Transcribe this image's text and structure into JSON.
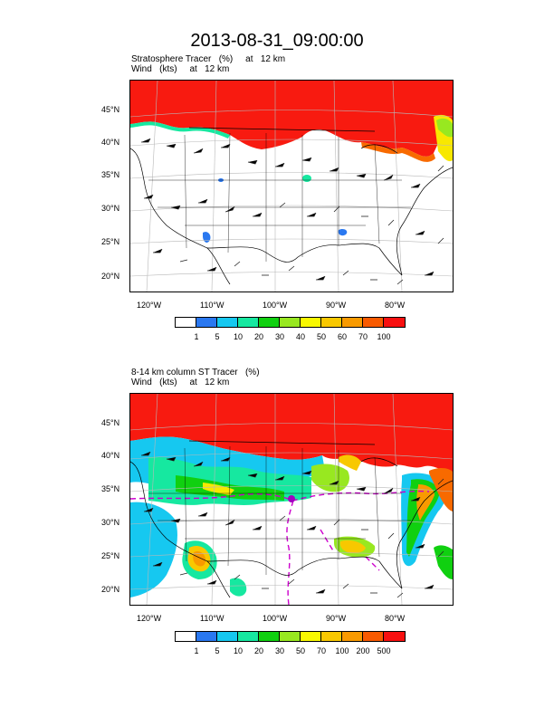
{
  "figure": {
    "title": "2013-08-31_09:00:00"
  },
  "panels": [
    {
      "title_line1": "Stratosphere Tracer   (%)     at   12 km",
      "title_line2": "Wind   (kts)     at   12 km",
      "lat_labels": [
        "45°N",
        "40°N",
        "35°N",
        "30°N",
        "25°N",
        "20°N"
      ],
      "lon_labels": [
        "120°W",
        "110°W",
        "100°W",
        "90°W",
        "80°W"
      ],
      "colorbar": {
        "colors": [
          "#ffffff",
          "#2a78f0",
          "#16c8f0",
          "#16e8a0",
          "#10d010",
          "#98e820",
          "#f8f800",
          "#f8c800",
          "#f89a00",
          "#f85a00",
          "#f81010"
        ],
        "labels": [
          "1",
          "5",
          "10",
          "20",
          "30",
          "40",
          "50",
          "60",
          "70",
          "100"
        ]
      }
    },
    {
      "title_line1": "8-14 km column ST Tracer   (%)",
      "title_line2": "Wind   (kts)     at   12 km",
      "lat_labels": [
        "45°N",
        "40°N",
        "35°N",
        "30°N",
        "25°N",
        "20°N"
      ],
      "lon_labels": [
        "120°W",
        "110°W",
        "100°W",
        "90°W",
        "80°W"
      ],
      "colorbar": {
        "colors": [
          "#ffffff",
          "#2a78f0",
          "#16c8f0",
          "#16e8a0",
          "#10d010",
          "#98e820",
          "#f8f800",
          "#f8c800",
          "#f89a00",
          "#f85a00",
          "#f81010"
        ],
        "labels": [
          "1",
          "5",
          "10",
          "20",
          "30",
          "50",
          "70",
          "100",
          "200",
          "500"
        ]
      }
    }
  ]
}
